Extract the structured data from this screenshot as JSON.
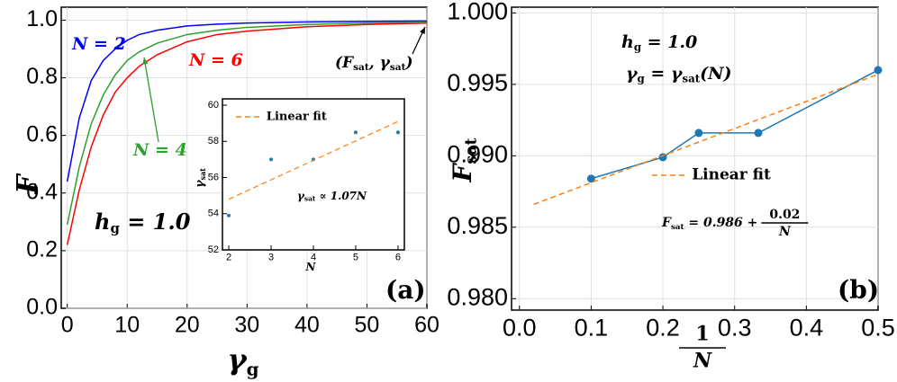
{
  "chart_data": [
    {
      "type": "line",
      "x_label": [
        "γ",
        {
          "sub": "g"
        }
      ],
      "y_label": [
        "F"
      ],
      "x": [
        0,
        2,
        4,
        6,
        8,
        10,
        12,
        15,
        20,
        25,
        30,
        40,
        50,
        60
      ],
      "series": [
        {
          "name": "N = 2",
          "color": "#0000ff",
          "values": [
            0.44,
            0.66,
            0.79,
            0.86,
            0.9,
            0.93,
            0.95,
            0.965,
            0.98,
            0.986,
            0.99,
            0.994,
            0.996,
            0.997
          ]
        },
        {
          "name": "N = 4",
          "color": "#2ca02c",
          "values": [
            0.29,
            0.49,
            0.64,
            0.74,
            0.81,
            0.86,
            0.89,
            0.92,
            0.95,
            0.965,
            0.975,
            0.985,
            0.99,
            0.992
          ]
        },
        {
          "name": "N = 6",
          "color": "#ff0000",
          "values": [
            0.22,
            0.41,
            0.56,
            0.67,
            0.75,
            0.8,
            0.84,
            0.88,
            0.925,
            0.95,
            0.962,
            0.977,
            0.985,
            0.99
          ]
        }
      ],
      "xlim": [
        -1,
        60
      ],
      "xticks": [
        0,
        10,
        20,
        30,
        40,
        50,
        60
      ],
      "ylim": [
        0,
        1.045
      ],
      "yticks": [
        {
          "value": 0,
          "label": "0.0"
        },
        0.2,
        0.4,
        0.6,
        0.8,
        {
          "value": 1,
          "label": "1.0"
        }
      ],
      "grid": true,
      "annotations": [
        {
          "text": [
            "(",
            "F",
            {
              "sub": "sat"
            },
            ", γ",
            {
              "sub": "sat"
            },
            ")"
          ],
          "color": "#000000"
        },
        {
          "text": [
            "h",
            {
              "sub": "g"
            },
            " = 1.0"
          ],
          "color": "#000000"
        },
        {
          "text": [
            "(a)"
          ],
          "color": "#000000"
        }
      ]
    },
    {
      "type": "scatter",
      "x_label": [
        "N"
      ],
      "y_label": [
        "γ",
        {
          "sub": "sat"
        }
      ],
      "series": [
        {
          "color": "#1f77b4",
          "marker": true,
          "line": false,
          "x": [
            2,
            3,
            4,
            5,
            6
          ],
          "values": [
            53.9,
            57,
            57,
            58.5,
            58.5
          ]
        },
        {
          "name": "Linear fit",
          "color": "#ff7f0e",
          "marker": false,
          "line": true,
          "dashed": true,
          "x": [
            2,
            6
          ],
          "values": [
            54.8,
            59.1
          ]
        }
      ],
      "xlim": [
        1.85,
        6.15
      ],
      "xticks": [
        2,
        3,
        4,
        5,
        6
      ],
      "ylim": [
        52,
        60
      ],
      "yticks": [
        52,
        54,
        56,
        58,
        60
      ],
      "grid": false,
      "annotations": [
        {
          "text": [
            "γ",
            {
              "sub": "sat"
            },
            " ∝ 1.07N"
          ],
          "color": "#000000"
        }
      ]
    },
    {
      "type": "line",
      "x_label": [
        {
          "num": "1",
          "den": "N"
        }
      ],
      "y_label": [
        "F",
        {
          "sub": "sat"
        }
      ],
      "series": [
        {
          "color": "#1f77b4",
          "marker": true,
          "line": true,
          "x": [
            0.1,
            0.2,
            0.25,
            0.333,
            0.5
          ],
          "values": [
            0.9884,
            0.9899,
            0.9916,
            0.9916,
            0.996
          ]
        },
        {
          "name": "Linear fit",
          "color": "#ff7f0e",
          "marker": false,
          "line": true,
          "dashed": true,
          "x": [
            0.02,
            0.5
          ],
          "values": [
            0.9866,
            0.9957
          ]
        }
      ],
      "xlim": [
        -0.011,
        0.5
      ],
      "xticks": [
        {
          "value": 0,
          "label": "0.0"
        },
        0.1,
        0.2,
        0.3,
        0.4,
        0.5
      ],
      "ylim": [
        0.9792,
        1.0004
      ],
      "yticks": [
        {
          "value": 0.98,
          "label": "0.980"
        },
        0.985,
        {
          "value": 0.99,
          "label": "0.990"
        },
        0.995,
        {
          "value": 1,
          "label": "1.000"
        }
      ],
      "grid": true,
      "annotations": [
        {
          "text": [
            "h",
            {
              "sub": "g"
            },
            " = 1.0"
          ],
          "color": "#000000"
        },
        {
          "text": [
            "γ",
            {
              "sub": "g"
            },
            " = γ",
            {
              "sub": "sat"
            },
            "(N)"
          ],
          "color": "#000000"
        },
        {
          "text": [
            "F",
            {
              "sub": "sat"
            },
            " = 0.986 + ",
            {
              "num": "0.02",
              "den": "N"
            }
          ],
          "color": "#000000"
        },
        {
          "text": [
            "(b)"
          ],
          "color": "#000000"
        }
      ]
    }
  ]
}
